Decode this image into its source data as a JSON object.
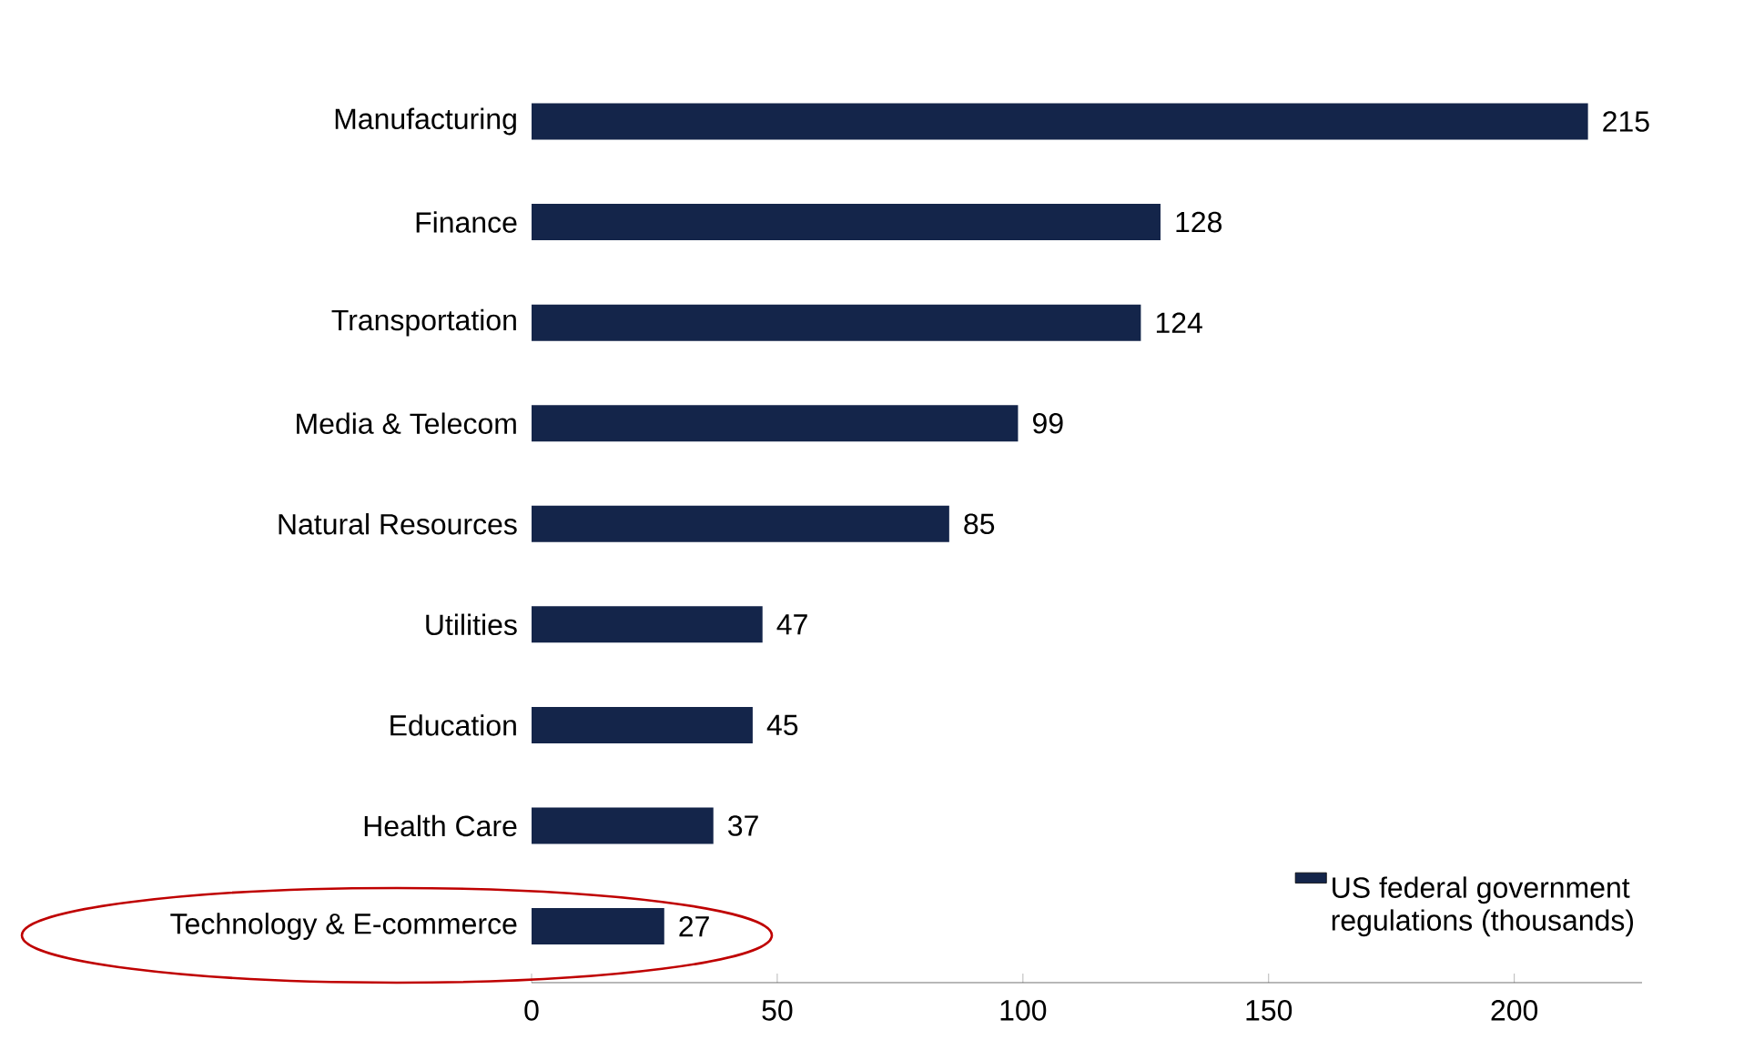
{
  "chart_data": {
    "type": "bar",
    "orientation": "horizontal",
    "categories": [
      "Manufacturing",
      "Finance",
      "Transportation",
      "Media & Telecom",
      "Natural Resources",
      "Utilities",
      "Education",
      "Health Care",
      "Technology & E-commerce"
    ],
    "series": [
      {
        "name": "US federal government regulations (thousands)",
        "color": "#14254a",
        "values": [
          215,
          128,
          124,
          99,
          85,
          47,
          45,
          37,
          27
        ]
      }
    ],
    "xlim": [
      0,
      226
    ],
    "xticks": [
      0,
      50,
      100,
      150,
      200
    ],
    "data_labels": true,
    "grid": false,
    "legend": "bottom right"
  }
}
